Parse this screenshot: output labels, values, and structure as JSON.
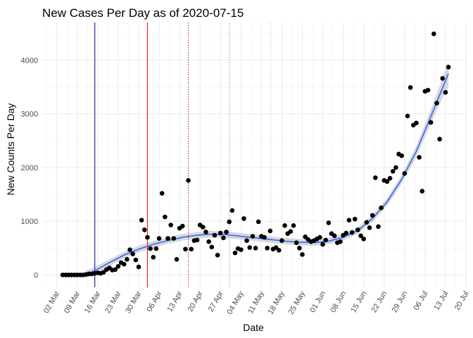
{
  "chart_data": {
    "type": "scatter",
    "title": "New Cases Per Day as of 2020-07-15",
    "xlabel": "Date",
    "ylabel": "New Counts Per Day",
    "xlim": [
      "2020-02-26",
      "2020-07-20"
    ],
    "ylim": [
      -230,
      4700
    ],
    "x_ticks": [
      "2020-03-02",
      "2020-03-09",
      "2020-03-16",
      "2020-03-23",
      "2020-03-30",
      "2020-04-06",
      "2020-04-13",
      "2020-04-20",
      "2020-04-27",
      "2020-05-04",
      "2020-05-11",
      "2020-05-18",
      "2020-05-25",
      "2020-06-01",
      "2020-06-08",
      "2020-06-15",
      "2020-06-22",
      "2020-06-29",
      "2020-07-06",
      "2020-07-13",
      "2020-07-20"
    ],
    "x_tick_labels": [
      "02 Mar",
      "09 Mar",
      "16 Mar",
      "23 Mar",
      "30 Mar",
      "06 Apr",
      "13 Apr",
      "20 Apr",
      "27 Apr",
      "04 May",
      "11 May",
      "18 May",
      "25 May",
      "01 Jun",
      "08 Jun",
      "15 Jun",
      "22 Jun",
      "29 Jun",
      "06 Jul",
      "13 Jul",
      "20 Jul"
    ],
    "y_ticks": [
      0,
      1000,
      2000,
      3000,
      4000
    ],
    "y_tick_labels": [
      "0",
      "1000",
      "2000",
      "3000",
      "4000"
    ],
    "grid": true,
    "reference_lines": [
      {
        "x": "2020-03-15",
        "color": "#00008b",
        "style": "solid"
      },
      {
        "x": "2020-04-02",
        "color": "#ff0000",
        "style": "solid"
      },
      {
        "x": "2020-04-16",
        "color": "#a52a2a",
        "style": "dotted"
      },
      {
        "x": "2020-04-30",
        "color": "#da70d6",
        "style": "dotted"
      },
      {
        "x": "2020-05-14",
        "color": "#d3d3d3",
        "style": "dotted"
      }
    ],
    "series": [
      {
        "type": "scatter",
        "color": "#000000",
        "points": [
          [
            "2020-03-04",
            0
          ],
          [
            "2020-03-05",
            0
          ],
          [
            "2020-03-06",
            0
          ],
          [
            "2020-03-07",
            0
          ],
          [
            "2020-03-08",
            0
          ],
          [
            "2020-03-09",
            0
          ],
          [
            "2020-03-10",
            0
          ],
          [
            "2020-03-11",
            0
          ],
          [
            "2020-03-12",
            10
          ],
          [
            "2020-03-13",
            20
          ],
          [
            "2020-03-14",
            20
          ],
          [
            "2020-03-15",
            30
          ],
          [
            "2020-03-16",
            40
          ],
          [
            "2020-03-17",
            30
          ],
          [
            "2020-03-18",
            50
          ],
          [
            "2020-03-19",
            100
          ],
          [
            "2020-03-20",
            130
          ],
          [
            "2020-03-21",
            90
          ],
          [
            "2020-03-22",
            100
          ],
          [
            "2020-03-23",
            160
          ],
          [
            "2020-03-24",
            230
          ],
          [
            "2020-03-25",
            200
          ],
          [
            "2020-03-26",
            290
          ],
          [
            "2020-03-27",
            470
          ],
          [
            "2020-03-28",
            390
          ],
          [
            "2020-03-29",
            280
          ],
          [
            "2020-03-30",
            150
          ],
          [
            "2020-03-31",
            1020
          ],
          [
            "2020-04-01",
            840
          ],
          [
            "2020-04-02",
            700
          ],
          [
            "2020-04-03",
            490
          ],
          [
            "2020-04-04",
            330
          ],
          [
            "2020-04-05",
            490
          ],
          [
            "2020-04-06",
            680
          ],
          [
            "2020-04-07",
            1520
          ],
          [
            "2020-04-08",
            1080
          ],
          [
            "2020-04-09",
            680
          ],
          [
            "2020-04-10",
            930
          ],
          [
            "2020-04-11",
            680
          ],
          [
            "2020-04-12",
            290
          ],
          [
            "2020-04-13",
            870
          ],
          [
            "2020-04-14",
            910
          ],
          [
            "2020-04-15",
            480
          ],
          [
            "2020-04-16",
            1760
          ],
          [
            "2020-04-17",
            480
          ],
          [
            "2020-04-18",
            640
          ],
          [
            "2020-04-19",
            650
          ],
          [
            "2020-04-20",
            930
          ],
          [
            "2020-04-21",
            890
          ],
          [
            "2020-04-22",
            800
          ],
          [
            "2020-04-23",
            620
          ],
          [
            "2020-04-24",
            520
          ],
          [
            "2020-04-25",
            740
          ],
          [
            "2020-04-26",
            370
          ],
          [
            "2020-04-27",
            780
          ],
          [
            "2020-04-28",
            690
          ],
          [
            "2020-04-29",
            800
          ],
          [
            "2020-04-30",
            990
          ],
          [
            "2020-05-01",
            1200
          ],
          [
            "2020-05-02",
            410
          ],
          [
            "2020-05-03",
            490
          ],
          [
            "2020-05-04",
            470
          ],
          [
            "2020-05-05",
            1050
          ],
          [
            "2020-05-06",
            640
          ],
          [
            "2020-05-07",
            510
          ],
          [
            "2020-05-08",
            720
          ],
          [
            "2020-05-09",
            500
          ],
          [
            "2020-05-10",
            990
          ],
          [
            "2020-05-11",
            720
          ],
          [
            "2020-05-12",
            700
          ],
          [
            "2020-05-13",
            500
          ],
          [
            "2020-05-14",
            820
          ],
          [
            "2020-05-15",
            480
          ],
          [
            "2020-05-16",
            510
          ],
          [
            "2020-05-17",
            460
          ],
          [
            "2020-05-18",
            640
          ],
          [
            "2020-05-19",
            920
          ],
          [
            "2020-05-20",
            770
          ],
          [
            "2020-05-21",
            810
          ],
          [
            "2020-05-22",
            920
          ],
          [
            "2020-05-23",
            600
          ],
          [
            "2020-05-24",
            500
          ],
          [
            "2020-05-25",
            380
          ],
          [
            "2020-05-26",
            710
          ],
          [
            "2020-05-27",
            660
          ],
          [
            "2020-05-28",
            620
          ],
          [
            "2020-05-29",
            640
          ],
          [
            "2020-05-30",
            670
          ],
          [
            "2020-05-31",
            700
          ],
          [
            "2020-06-01",
            570
          ],
          [
            "2020-06-02",
            650
          ],
          [
            "2020-06-03",
            970
          ],
          [
            "2020-06-04",
            770
          ],
          [
            "2020-06-05",
            730
          ],
          [
            "2020-06-06",
            600
          ],
          [
            "2020-06-07",
            620
          ],
          [
            "2020-06-08",
            740
          ],
          [
            "2020-06-09",
            780
          ],
          [
            "2020-06-10",
            1020
          ],
          [
            "2020-06-11",
            790
          ],
          [
            "2020-06-12",
            1040
          ],
          [
            "2020-06-13",
            840
          ],
          [
            "2020-06-14",
            730
          ],
          [
            "2020-06-15",
            670
          ],
          [
            "2020-06-16",
            980
          ],
          [
            "2020-06-17",
            880
          ],
          [
            "2020-06-18",
            1110
          ],
          [
            "2020-06-19",
            1810
          ],
          [
            "2020-06-20",
            900
          ],
          [
            "2020-06-21",
            1250
          ],
          [
            "2020-06-22",
            1760
          ],
          [
            "2020-06-23",
            1740
          ],
          [
            "2020-06-24",
            1800
          ],
          [
            "2020-06-25",
            1930
          ],
          [
            "2020-06-26",
            2000
          ],
          [
            "2020-06-27",
            2250
          ],
          [
            "2020-06-28",
            2220
          ],
          [
            "2020-06-29",
            1890
          ],
          [
            "2020-06-30",
            2960
          ],
          [
            "2020-07-01",
            3490
          ],
          [
            "2020-07-02",
            2790
          ],
          [
            "2020-07-03",
            2830
          ],
          [
            "2020-07-04",
            2190
          ],
          [
            "2020-07-05",
            1560
          ],
          [
            "2020-07-06",
            3420
          ],
          [
            "2020-07-07",
            3440
          ],
          [
            "2020-07-08",
            2840
          ],
          [
            "2020-07-09",
            4490
          ],
          [
            "2020-07-10",
            3200
          ],
          [
            "2020-07-11",
            2530
          ],
          [
            "2020-07-12",
            3660
          ],
          [
            "2020-07-13",
            3400
          ],
          [
            "2020-07-14",
            3870
          ]
        ]
      },
      {
        "type": "smooth-line",
        "color": "#3366ff",
        "band_color": "#bebebe",
        "points": [
          [
            "2020-03-12",
            10,
            -60,
            80
          ],
          [
            "2020-03-15",
            80,
            10,
            150
          ],
          [
            "2020-03-20",
            230,
            170,
            290
          ],
          [
            "2020-03-25",
            370,
            310,
            430
          ],
          [
            "2020-03-30",
            480,
            420,
            540
          ],
          [
            "2020-04-04",
            570,
            510,
            630
          ],
          [
            "2020-04-09",
            640,
            580,
            700
          ],
          [
            "2020-04-14",
            700,
            640,
            760
          ],
          [
            "2020-04-19",
            740,
            680,
            800
          ],
          [
            "2020-04-24",
            760,
            700,
            820
          ],
          [
            "2020-04-29",
            750,
            690,
            810
          ],
          [
            "2020-05-04",
            720,
            660,
            780
          ],
          [
            "2020-05-09",
            690,
            630,
            750
          ],
          [
            "2020-05-14",
            660,
            600,
            720
          ],
          [
            "2020-05-19",
            630,
            570,
            690
          ],
          [
            "2020-05-24",
            610,
            550,
            670
          ],
          [
            "2020-05-29",
            600,
            540,
            660
          ],
          [
            "2020-06-03",
            630,
            570,
            690
          ],
          [
            "2020-06-08",
            700,
            640,
            760
          ],
          [
            "2020-06-13",
            830,
            770,
            890
          ],
          [
            "2020-06-18",
            1050,
            990,
            1110
          ],
          [
            "2020-06-23",
            1360,
            1290,
            1430
          ],
          [
            "2020-06-28",
            1780,
            1700,
            1860
          ],
          [
            "2020-07-03",
            2300,
            2200,
            2400
          ],
          [
            "2020-07-08",
            2950,
            2820,
            3080
          ],
          [
            "2020-07-11",
            3350,
            3180,
            3520
          ],
          [
            "2020-07-14",
            3750,
            3520,
            3980
          ]
        ]
      }
    ]
  }
}
